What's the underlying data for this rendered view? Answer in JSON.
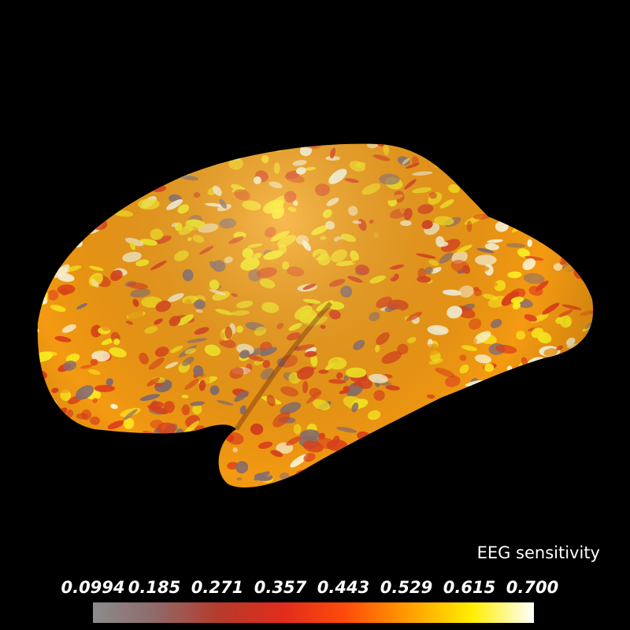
{
  "colorbar": {
    "title": "EEG sensitivity",
    "ticks": [
      "0.0994",
      "0.185",
      "0.271",
      "0.357",
      "0.443",
      "0.529",
      "0.615",
      "0.700"
    ],
    "colors": [
      "#8c8c8c",
      "#8f6a6a",
      "#b73a2a",
      "#e02c1c",
      "#ff4a0c",
      "#ff9a00",
      "#ffee00",
      "#ffffff"
    ]
  },
  "surface": {
    "colors": {
      "base": "#f49a12",
      "hot": "#ffee20",
      "peak": "#fff8d8",
      "warm": "#e0401a",
      "cool": "#8a6e6e"
    }
  }
}
